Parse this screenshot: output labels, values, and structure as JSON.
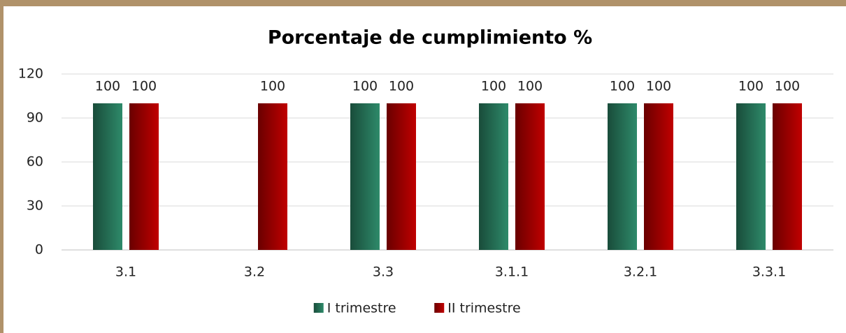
{
  "chart_data": {
    "type": "bar",
    "title": "Porcentaje de cumplimiento %",
    "categories": [
      "3.1",
      "3.2",
      "3.3",
      "3.1.1",
      "3.2.1",
      "3.3.1"
    ],
    "series": [
      {
        "name": "I trimestre",
        "color": "#2e8a6a",
        "values": [
          100,
          null,
          100,
          100,
          100,
          100
        ]
      },
      {
        "name": "II trimestre",
        "color": "#c00000",
        "values": [
          100,
          100,
          100,
          100,
          100,
          100
        ]
      }
    ],
    "ylim": [
      0,
      120
    ],
    "yticks": [
      0,
      30,
      60,
      90,
      120
    ],
    "grid": true,
    "legend": "bottom"
  }
}
